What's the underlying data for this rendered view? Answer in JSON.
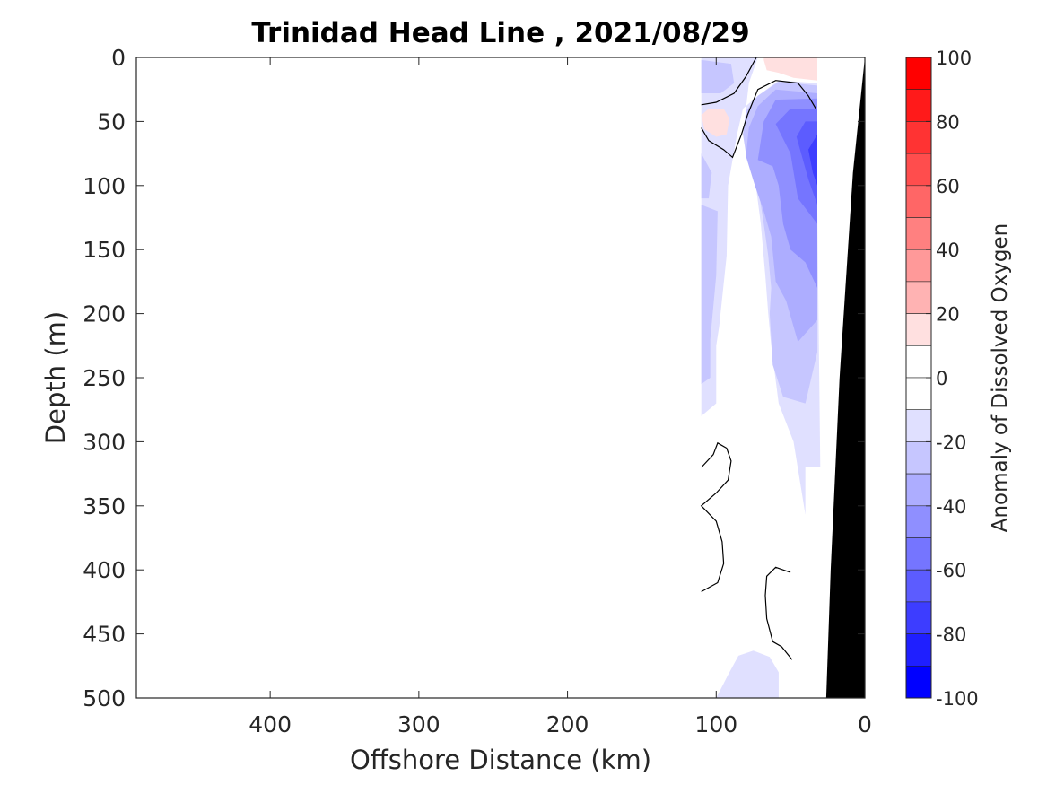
{
  "chart_data": {
    "type": "contour",
    "title": "Trinidad Head Line , 2021/08/29",
    "xlabel": "Offshore Distance (km)",
    "ylabel": "Depth (m)",
    "xlim": [
      490,
      0
    ],
    "ylim": [
      500,
      0
    ],
    "x_reversed": true,
    "y_reversed": true,
    "x_ticks": [
      400,
      300,
      200,
      100,
      0
    ],
    "x_tick_labels": [
      "400",
      "300",
      "200",
      "100",
      "0"
    ],
    "y_ticks": [
      0,
      50,
      100,
      150,
      200,
      250,
      300,
      350,
      400,
      450,
      500
    ],
    "y_tick_labels": [
      "0",
      "50",
      "100",
      "150",
      "200",
      "250",
      "300",
      "350",
      "400",
      "450",
      "500"
    ],
    "colorbar": {
      "label": "Anomaly of Dissolved Oxygen",
      "range": [
        -100,
        100
      ],
      "tick_values": [
        100,
        80,
        60,
        40,
        20,
        0,
        -20,
        -40,
        -60,
        -80,
        -100
      ],
      "tick_labels": [
        "100",
        "80",
        "60",
        "40",
        "20",
        "0",
        "-20",
        "-40",
        "-60",
        "-80",
        "-100"
      ],
      "levels": [
        {
          "min": 90,
          "max": 100,
          "color": "#ff0000"
        },
        {
          "min": 80,
          "max": 90,
          "color": "#ff1a1a"
        },
        {
          "min": 70,
          "max": 80,
          "color": "#ff3333"
        },
        {
          "min": 60,
          "max": 70,
          "color": "#ff4d4d"
        },
        {
          "min": 50,
          "max": 60,
          "color": "#ff6666"
        },
        {
          "min": 40,
          "max": 50,
          "color": "#ff8080"
        },
        {
          "min": 30,
          "max": 40,
          "color": "#ff9999"
        },
        {
          "min": 20,
          "max": 30,
          "color": "#ffb3b3"
        },
        {
          "min": 10,
          "max": 20,
          "color": "#ffe0e0"
        },
        {
          "min": 0,
          "max": 10,
          "color": "#ffffff"
        },
        {
          "min": -10,
          "max": 0,
          "color": "#ffffff"
        },
        {
          "min": -20,
          "max": -10,
          "color": "#e0e0ff"
        },
        {
          "min": -30,
          "max": -20,
          "color": "#c6c6ff"
        },
        {
          "min": -40,
          "max": -30,
          "color": "#adadff"
        },
        {
          "min": -50,
          "max": -40,
          "color": "#8f8fff"
        },
        {
          "min": -60,
          "max": -50,
          "color": "#7575ff"
        },
        {
          "min": -70,
          "max": -60,
          "color": "#5c5cff"
        },
        {
          "min": -80,
          "max": -70,
          "color": "#3d3dff"
        },
        {
          "min": -90,
          "max": -80,
          "color": "#1f1fff"
        },
        {
          "min": -100,
          "max": -90,
          "color": "#0000ff"
        }
      ]
    },
    "filled_regions": [
      {
        "level": -20,
        "points": [
          [
            110,
            0
          ],
          [
            110,
            280
          ],
          [
            100,
            270
          ],
          [
            100,
            225
          ],
          [
            98,
            210
          ],
          [
            93,
            155
          ],
          [
            92,
            100
          ],
          [
            89,
            80
          ],
          [
            86,
            60
          ],
          [
            82,
            40
          ],
          [
            72,
            30
          ],
          [
            58,
            18
          ],
          [
            32,
            20
          ],
          [
            32,
            120
          ],
          [
            30,
            320
          ],
          [
            40,
            320
          ],
          [
            40,
            357
          ],
          [
            48,
            300
          ],
          [
            58,
            270
          ],
          [
            63,
            225
          ],
          [
            65,
            200
          ],
          [
            67,
            170
          ],
          [
            70,
            130
          ],
          [
            80,
            40
          ],
          [
            78,
            20
          ],
          [
            72,
            0
          ]
        ]
      },
      {
        "level": -20,
        "points": [
          [
            100,
            500
          ],
          [
            92,
            482
          ],
          [
            85,
            467
          ],
          [
            75,
            463
          ],
          [
            64,
            468
          ],
          [
            58,
            480
          ],
          [
            58,
            500
          ]
        ]
      },
      {
        "level": -30,
        "points": [
          [
            110,
            2
          ],
          [
            110,
            28
          ],
          [
            97,
            28
          ],
          [
            88,
            20
          ],
          [
            90,
            5
          ]
        ]
      },
      {
        "level": -30,
        "points": [
          [
            110,
            75
          ],
          [
            110,
            110
          ],
          [
            105,
            110
          ],
          [
            103,
            90
          ]
        ]
      },
      {
        "level": -30,
        "points": [
          [
            110,
            115
          ],
          [
            110,
            255
          ],
          [
            104,
            250
          ],
          [
            104,
            220
          ],
          [
            100,
            170
          ],
          [
            99,
            120
          ]
        ]
      },
      {
        "level": -30,
        "points": [
          [
            80,
            75
          ],
          [
            82,
            60
          ],
          [
            80,
            42
          ],
          [
            72,
            30
          ],
          [
            58,
            19
          ],
          [
            32,
            22
          ],
          [
            32,
            230
          ],
          [
            40,
            270
          ],
          [
            55,
            265
          ],
          [
            62,
            240
          ],
          [
            64,
            200
          ],
          [
            63,
            180
          ],
          [
            65,
            155
          ],
          [
            68,
            130
          ],
          [
            72,
            100
          ],
          [
            76,
            87
          ]
        ]
      },
      {
        "level": -40,
        "points": [
          [
            80,
            77
          ],
          [
            78,
            55
          ],
          [
            72,
            38
          ],
          [
            60,
            25
          ],
          [
            32,
            28
          ],
          [
            32,
            205
          ],
          [
            45,
            222
          ],
          [
            53,
            190
          ],
          [
            60,
            175
          ],
          [
            63,
            140
          ],
          [
            68,
            120
          ],
          [
            74,
            100
          ]
        ]
      },
      {
        "level": -50,
        "points": [
          [
            72,
            80
          ],
          [
            68,
            50
          ],
          [
            60,
            33
          ],
          [
            32,
            32
          ],
          [
            32,
            180
          ],
          [
            40,
            160
          ],
          [
            50,
            150
          ],
          [
            55,
            130
          ],
          [
            58,
            100
          ],
          [
            62,
            85
          ]
        ]
      },
      {
        "level": -60,
        "points": [
          [
            60,
            52
          ],
          [
            50,
            40
          ],
          [
            32,
            40
          ],
          [
            32,
            130
          ],
          [
            45,
            110
          ],
          [
            50,
            75
          ]
        ]
      },
      {
        "level": -70,
        "points": [
          [
            46,
            62
          ],
          [
            40,
            50
          ],
          [
            32,
            50
          ],
          [
            32,
            115
          ],
          [
            38,
            95
          ]
        ]
      },
      {
        "level": -80,
        "points": [
          [
            38,
            72
          ],
          [
            32,
            60
          ],
          [
            32,
            100
          ],
          [
            35,
            90
          ]
        ]
      },
      {
        "level": 20,
        "points": [
          [
            62,
            5
          ],
          [
            60,
            10
          ],
          [
            50,
            10
          ],
          [
            45,
            14
          ],
          [
            32,
            14
          ],
          [
            32,
            0
          ],
          [
            58,
            0
          ]
        ]
      },
      {
        "level": 20,
        "points": [
          [
            108,
            43
          ],
          [
            97,
            45
          ],
          [
            96,
            52
          ],
          [
            100,
            57
          ],
          [
            104,
            55
          ]
        ]
      },
      {
        "level": 10,
        "points": [
          [
            68,
            2
          ],
          [
            66,
            10
          ],
          [
            58,
            12
          ],
          [
            48,
            16
          ],
          [
            32,
            18
          ],
          [
            32,
            0
          ],
          [
            68,
            0
          ]
        ]
      },
      {
        "level": 10,
        "points": [
          [
            110,
            45
          ],
          [
            105,
            40
          ],
          [
            95,
            40
          ],
          [
            91,
            48
          ],
          [
            93,
            60
          ],
          [
            100,
            62
          ],
          [
            108,
            56
          ]
        ]
      }
    ],
    "contour_lines": [
      {
        "level": 0,
        "points": [
          [
            110,
            37
          ],
          [
            100,
            35
          ],
          [
            88,
            28
          ],
          [
            80,
            15
          ],
          [
            73,
            0
          ]
        ]
      },
      {
        "level": 0,
        "points": [
          [
            110,
            55
          ],
          [
            105,
            65
          ],
          [
            95,
            72
          ],
          [
            89,
            78
          ],
          [
            83,
            60
          ],
          [
            79,
            45
          ],
          [
            72,
            25
          ],
          [
            60,
            18
          ],
          [
            45,
            20
          ],
          [
            38,
            30
          ],
          [
            33,
            40
          ]
        ]
      },
      {
        "level": 0,
        "points": [
          [
            110,
            320
          ],
          [
            102,
            310
          ],
          [
            99,
            301
          ],
          [
            93,
            305
          ],
          [
            90,
            315
          ],
          [
            92,
            330
          ],
          [
            100,
            340
          ],
          [
            110,
            350
          ],
          [
            100,
            362
          ],
          [
            96,
            378
          ],
          [
            95,
            395
          ],
          [
            99,
            410
          ],
          [
            110,
            417
          ]
        ]
      },
      {
        "level": 0,
        "points": [
          [
            50,
            402
          ],
          [
            60,
            398
          ],
          [
            66,
            405
          ],
          [
            67,
            420
          ],
          [
            66,
            438
          ],
          [
            62,
            456
          ],
          [
            56,
            460
          ],
          [
            49,
            470
          ]
        ]
      }
    ],
    "bathymetry": [
      [
        0,
        0
      ],
      [
        8,
        90
      ],
      [
        17,
        250
      ],
      [
        23,
        400
      ],
      [
        26,
        500
      ],
      [
        0,
        500
      ]
    ]
  }
}
